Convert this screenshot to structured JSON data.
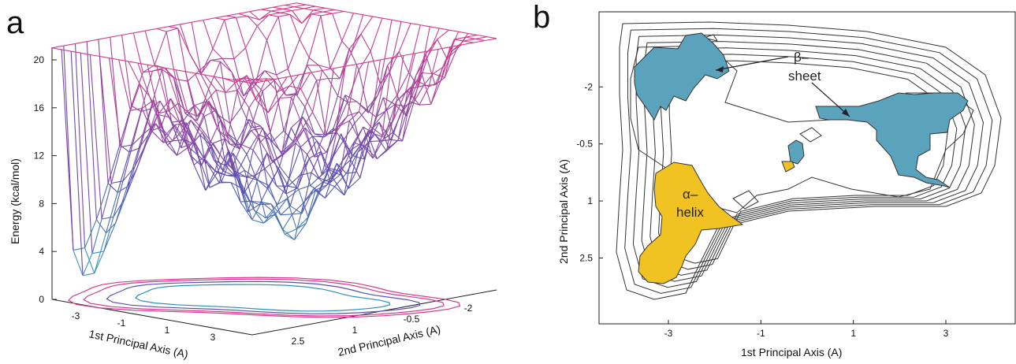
{
  "colors": {
    "surface_high": "#d63c8c",
    "surface_mid": "#5a4fb0",
    "surface_low": "#2fb3b8",
    "contour_line": "#333333",
    "beta_fill": "#5ba3bd",
    "alpha_fill": "#f0c322"
  },
  "chart_data": [
    {
      "type": "surface",
      "panel": "a",
      "zlabel": "Energy (kcal/mol)",
      "xlabel": "1st Principal Axis (A)",
      "ylabel": "2nd Principal Axis (A)",
      "z_ticks": [
        "0",
        "4",
        "8",
        "12",
        "16",
        "20"
      ],
      "x_ticks": [
        "-3",
        "-1",
        "1",
        "3"
      ],
      "y_ticks": [
        "2.5",
        "1",
        "-0.5",
        "-2"
      ],
      "zlim": [
        0,
        21
      ],
      "features": {
        "plateau_energy": 21,
        "deepest_min": {
          "x1": -3,
          "x2": 2.5,
          "energy": 0.5
        },
        "central_min_cluster": {
          "x1": 0,
          "x2": 0.5,
          "energy": 5
        },
        "base_contours": true
      }
    },
    {
      "type": "contour",
      "panel": "b",
      "xlabel": "1st Principal Axis (A)",
      "ylabel": "2nd Principal Axis (A)",
      "x_ticks": [
        "-3",
        "-1",
        "1",
        "3"
      ],
      "y_ticks": [
        "-2",
        "-0.5",
        "1",
        "2.5"
      ],
      "xlim": [
        -4.5,
        4.5
      ],
      "ylim": [
        -3.2,
        3.2
      ],
      "regions": [
        {
          "label": "β–sheet",
          "name_line1": "β–",
          "name_line2": "sheet",
          "color": "#5ba3bd"
        },
        {
          "label": "α–helix",
          "name_line1": "α–",
          "name_line2": "helix",
          "color": "#f0c322"
        }
      ]
    }
  ]
}
